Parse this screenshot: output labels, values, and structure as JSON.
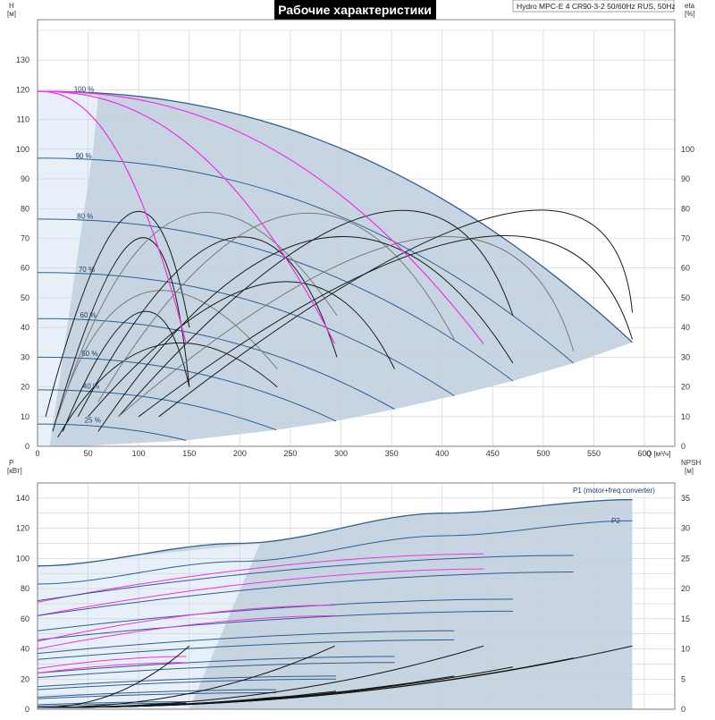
{
  "header": {
    "title": "Рабочие характеристики",
    "model": "Hydro MPC-E 4 CR90-3-2 50/60Hz RUS, 50Hz"
  },
  "top_axes": {
    "left_label": "H",
    "left_unit": "[м]",
    "right_label": "eta",
    "right_unit": "[%]",
    "x_unit": "Q [м³/ч]",
    "x_ticks": [
      "0",
      "50",
      "100",
      "150",
      "200",
      "250",
      "300",
      "350",
      "400",
      "450",
      "500",
      "550",
      "600"
    ],
    "h_ticks": [
      "0",
      "10",
      "20",
      "30",
      "40",
      "50",
      "60",
      "70",
      "80",
      "90",
      "100",
      "110",
      "120",
      "130"
    ],
    "eta_ticks": [
      "0",
      "10",
      "20",
      "30",
      "40",
      "50",
      "60",
      "70",
      "80",
      "90",
      "100"
    ]
  },
  "bottom_axes": {
    "left_label": "P",
    "left_unit": "[кВт]",
    "right_label": "NPSH",
    "right_unit": "[м]",
    "p_ticks": [
      "0",
      "20",
      "40",
      "60",
      "80",
      "100",
      "120",
      "140"
    ],
    "npsh_ticks": [
      "0",
      "5",
      "10",
      "15",
      "20",
      "25",
      "30",
      "35"
    ]
  },
  "speed_labels": [
    "100 %",
    "90 %",
    "80 %",
    "70 %",
    "60 %",
    "50 %",
    "40 %",
    "25 %"
  ],
  "curve_labels": {
    "p1": "P1 (motor+freq.converter)",
    "p2": "P2"
  },
  "colors": {
    "qh_curve": "#2f5f8f",
    "eta_curve": "#1a1a1a",
    "eta_curve_light": "#7a7a7a",
    "pump_curve": "#ee33dd",
    "area_dark": "#c7d5e3",
    "area_light": "#e7f0f8",
    "grid": "#cfcfcf",
    "npsh_curve": "#111111"
  },
  "chart_data": [
    {
      "type": "line",
      "title": "Рабочие характеристики",
      "xlabel": "Q [м³/ч]",
      "ylabel": "H [м]",
      "y2label": "eta [%]",
      "xlim": [
        0,
        630
      ],
      "ylim": [
        0,
        140
      ],
      "grid": true,
      "series": [
        {
          "name": "100 %",
          "shutoff_head": 119.5,
          "end_flow": 588,
          "end_head": 35
        },
        {
          "name": "90 %",
          "shutoff_head": 97,
          "end_flow": 530,
          "end_head": 28
        },
        {
          "name": "80 %",
          "shutoff_head": 76.5,
          "end_flow": 470,
          "end_head": 22
        },
        {
          "name": "70 %",
          "shutoff_head": 58.5,
          "end_flow": 412,
          "end_head": 17
        },
        {
          "name": "60 %",
          "shutoff_head": 43,
          "end_flow": 353,
          "end_head": 12.5
        },
        {
          "name": "50 %",
          "shutoff_head": 30,
          "end_flow": 295,
          "end_head": 8.5
        },
        {
          "name": "40 %",
          "shutoff_head": 19,
          "end_flow": 236,
          "end_head": 5.5
        },
        {
          "name": "25 %",
          "shutoff_head": 7.5,
          "end_flow": 147,
          "end_head": 2
        }
      ],
      "pump_curves": [
        {
          "end_flow": 147,
          "end_head": 34.5
        },
        {
          "end_flow": 294,
          "end_head": 34.5
        },
        {
          "end_flow": 441,
          "end_head": 34.5
        }
      ],
      "efficiency_curves": [
        {
          "x": [
            8,
            90,
            150
          ],
          "y": [
            10,
            78,
            40
          ]
        },
        {
          "x": [
            15,
            100,
            150
          ],
          "y": [
            5,
            70,
            20
          ]
        },
        {
          "x": [
            20,
            110,
            237
          ],
          "y": [
            10,
            52,
            26
          ]
        },
        {
          "x": [
            25,
            100,
            150
          ],
          "y": [
            5,
            45,
            20
          ]
        },
        {
          "x": [
            20,
            120,
            237
          ],
          "y": [
            3,
            34,
            20
          ]
        },
        {
          "x": [
            30,
            150,
            296
          ],
          "y": [
            20,
            78,
            44
          ]
        },
        {
          "x": [
            40,
            190,
            296
          ],
          "y": [
            10,
            70,
            30
          ]
        },
        {
          "x": [
            50,
            230,
            353
          ],
          "y": [
            10,
            55,
            26
          ]
        },
        {
          "x": [
            60,
            250,
            412
          ],
          "y": [
            15,
            78,
            36
          ]
        },
        {
          "x": [
            60,
            280,
            470
          ],
          "y": [
            5,
            70,
            28
          ]
        },
        {
          "x": [
            80,
            330,
            470
          ],
          "y": [
            10,
            78,
            44
          ]
        },
        {
          "x": [
            80,
            380,
            530
          ],
          "y": [
            10,
            70,
            32
          ]
        },
        {
          "x": [
            100,
            430,
            588
          ],
          "y": [
            10,
            70,
            36
          ]
        },
        {
          "x": [
            120,
            460,
            588
          ],
          "y": [
            10,
            78,
            45
          ]
        }
      ]
    },
    {
      "type": "line",
      "xlabel": "Q [м³/ч]",
      "ylabel": "P [кВт]",
      "y2label": "NPSH [м]",
      "xlim": [
        0,
        630
      ],
      "ylim": [
        0,
        150
      ],
      "grid": true,
      "series": [
        {
          "name": "P1 (motor+freq.converter)",
          "x": [
            0,
            200,
            400,
            588
          ],
          "y": [
            95,
            110,
            130,
            139
          ]
        },
        {
          "name": "P2",
          "x": [
            0,
            200,
            400,
            588
          ],
          "y": [
            83,
            98,
            115,
            125
          ]
        }
      ],
      "power_curves_at_speeds": [
        {
          "start": 71,
          "end": 103,
          "end_flow": 441,
          "pink": true
        },
        {
          "start": 62,
          "end": 93,
          "end_flow": 441,
          "pink": true
        },
        {
          "start": 72,
          "end": 102,
          "end_flow": 530,
          "pink": false
        },
        {
          "start": 62,
          "end": 91,
          "end_flow": 530,
          "pink": false
        },
        {
          "start": 52,
          "end": 73,
          "end_flow": 470,
          "pink": false
        },
        {
          "start": 46,
          "end": 65,
          "end_flow": 470,
          "pink": false
        },
        {
          "start": 45,
          "end": 69,
          "end_flow": 294,
          "pink": true
        },
        {
          "start": 40,
          "end": 62,
          "end_flow": 294,
          "pink": true
        },
        {
          "start": 37,
          "end": 52,
          "end_flow": 412,
          "pink": false
        },
        {
          "start": 33,
          "end": 46,
          "end_flow": 412,
          "pink": false
        },
        {
          "start": 24,
          "end": 35,
          "end_flow": 353,
          "pink": false
        },
        {
          "start": 21,
          "end": 31,
          "end_flow": 353,
          "pink": false
        },
        {
          "start": 27,
          "end": 35,
          "end_flow": 147,
          "pink": true
        },
        {
          "start": 24,
          "end": 31,
          "end_flow": 147,
          "pink": true
        },
        {
          "start": 15,
          "end": 22,
          "end_flow": 295,
          "pink": false
        },
        {
          "start": 13,
          "end": 20,
          "end_flow": 295,
          "pink": false
        },
        {
          "start": 8,
          "end": 13,
          "end_flow": 236,
          "pink": false
        },
        {
          "start": 7,
          "end": 11,
          "end_flow": 236,
          "pink": false
        },
        {
          "start": 3,
          "end": 5,
          "end_flow": 147,
          "pink": false
        },
        {
          "start": 2,
          "end": 4,
          "end_flow": 147,
          "pink": false
        }
      ],
      "npsh_curves": [
        {
          "end_flow": 150,
          "end": 10.5
        },
        {
          "end_flow": 294,
          "end": 10.5
        },
        {
          "end_flow": 441,
          "end": 10.5
        },
        {
          "end_flow": 588,
          "end": 10.5
        },
        {
          "end_flow": 530,
          "end": 8.5
        },
        {
          "end_flow": 470,
          "end": 7
        },
        {
          "end_flow": 412,
          "end": 5.5
        },
        {
          "end_flow": 353,
          "end": 4
        },
        {
          "end_flow": 295,
          "end": 3
        },
        {
          "end_flow": 236,
          "end": 2
        },
        {
          "end_flow": 147,
          "end": 1
        }
      ]
    }
  ]
}
